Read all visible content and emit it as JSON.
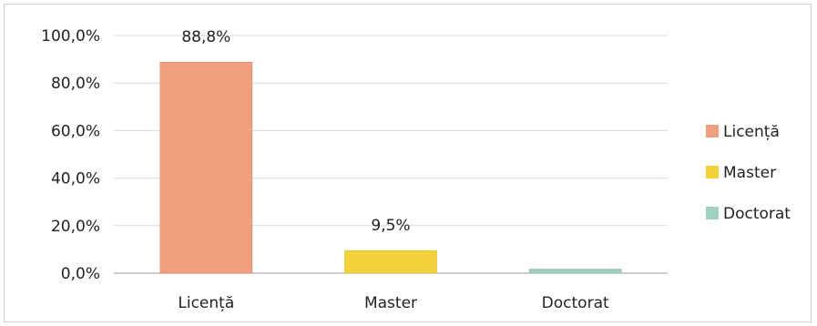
{
  "chart_data": {
    "type": "bar",
    "title": "",
    "xlabel": "",
    "ylabel": "",
    "categories": [
      "Licență",
      "Master",
      "Doctorat"
    ],
    "values": [
      88.8,
      9.5,
      1.7
    ],
    "data_labels": [
      "88,8%",
      "9,5%",
      ""
    ],
    "ylim": [
      0,
      100
    ],
    "yticks": [
      0,
      20,
      40,
      60,
      80,
      100
    ],
    "ytick_labels": [
      "0,0%",
      "20,0%",
      "40,0%",
      "60,0%",
      "80,0%",
      "100,0%"
    ],
    "grid": true,
    "legend_position": "right",
    "legend": [
      {
        "label": "Licență",
        "color": "#f0a07f"
      },
      {
        "label": "Master",
        "color": "#f2d23a"
      },
      {
        "label": "Doctorat",
        "color": "#9fd0c2"
      }
    ],
    "colors": [
      "#f0a07f",
      "#f2d23a",
      "#9fd0c2"
    ]
  }
}
